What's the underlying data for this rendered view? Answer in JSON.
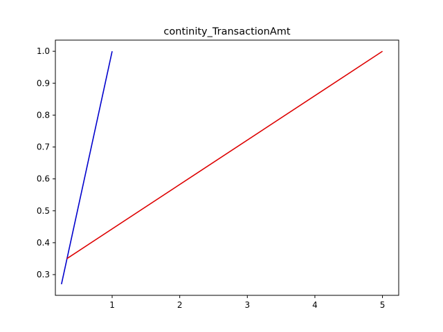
{
  "chart_data": {
    "type": "line",
    "title": "continity_TransactionAmt",
    "xlabel": "",
    "ylabel": "",
    "xlim": [
      0.16,
      5.24
    ],
    "ylim": [
      0.235,
      1.035
    ],
    "x_ticks": [
      1,
      2,
      3,
      4,
      5
    ],
    "y_ticks": [
      0.3,
      0.4,
      0.5,
      0.6,
      0.7,
      0.8,
      0.9,
      1.0
    ],
    "x_tick_labels": [
      "1",
      "2",
      "3",
      "4",
      "5"
    ],
    "y_tick_labels": [
      "0.3",
      "0.4",
      "0.5",
      "0.6",
      "0.7",
      "0.8",
      "0.9",
      "1.0"
    ],
    "grid": false,
    "legend": "none",
    "series": [
      {
        "color": "#0000cc",
        "x": [
          0.25,
          1.0
        ],
        "y": [
          0.27,
          1.0
        ]
      },
      {
        "color": "#dd0000",
        "x": [
          0.33,
          5.0
        ],
        "y": [
          0.35,
          1.0
        ]
      }
    ]
  }
}
